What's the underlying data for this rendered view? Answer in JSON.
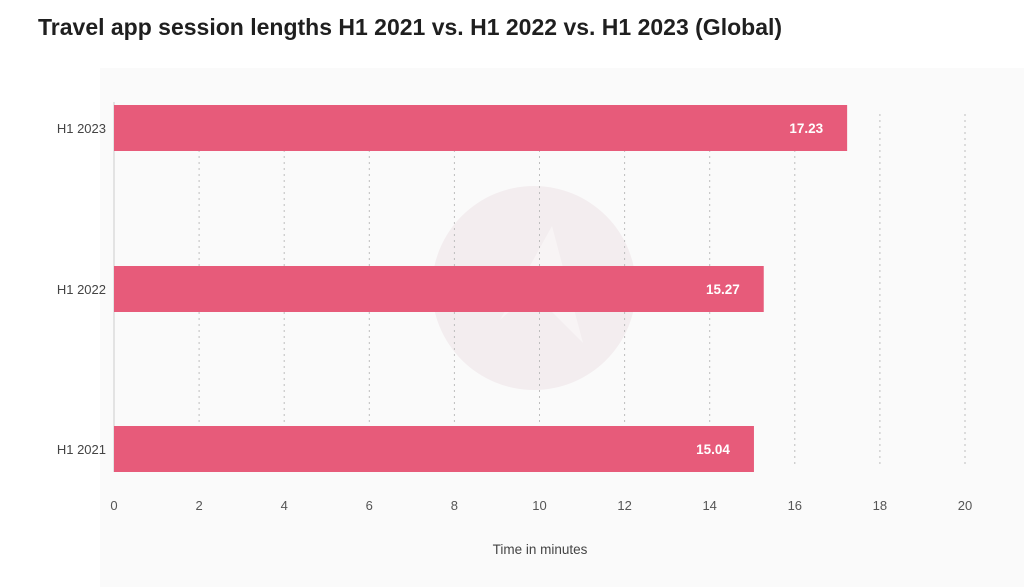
{
  "title": "Travel app session lengths H1 2021 vs. H1 2022 vs. H1 2023 (Global)",
  "chart_data": {
    "type": "bar",
    "orientation": "horizontal",
    "categories": [
      "H1 2023",
      "H1 2022",
      "H1 2021"
    ],
    "values": [
      17.23,
      15.27,
      15.04
    ],
    "value_labels": [
      "17.23",
      "15.27",
      "15.04"
    ],
    "xlabel": "Time in minutes",
    "ylabel": "",
    "xlim": [
      0,
      20
    ],
    "xticks": [
      0,
      2,
      4,
      6,
      8,
      10,
      12,
      14,
      16,
      18,
      20
    ],
    "grid": "vertical dotted",
    "bar_color": "#e75b7a",
    "legend": "none"
  }
}
